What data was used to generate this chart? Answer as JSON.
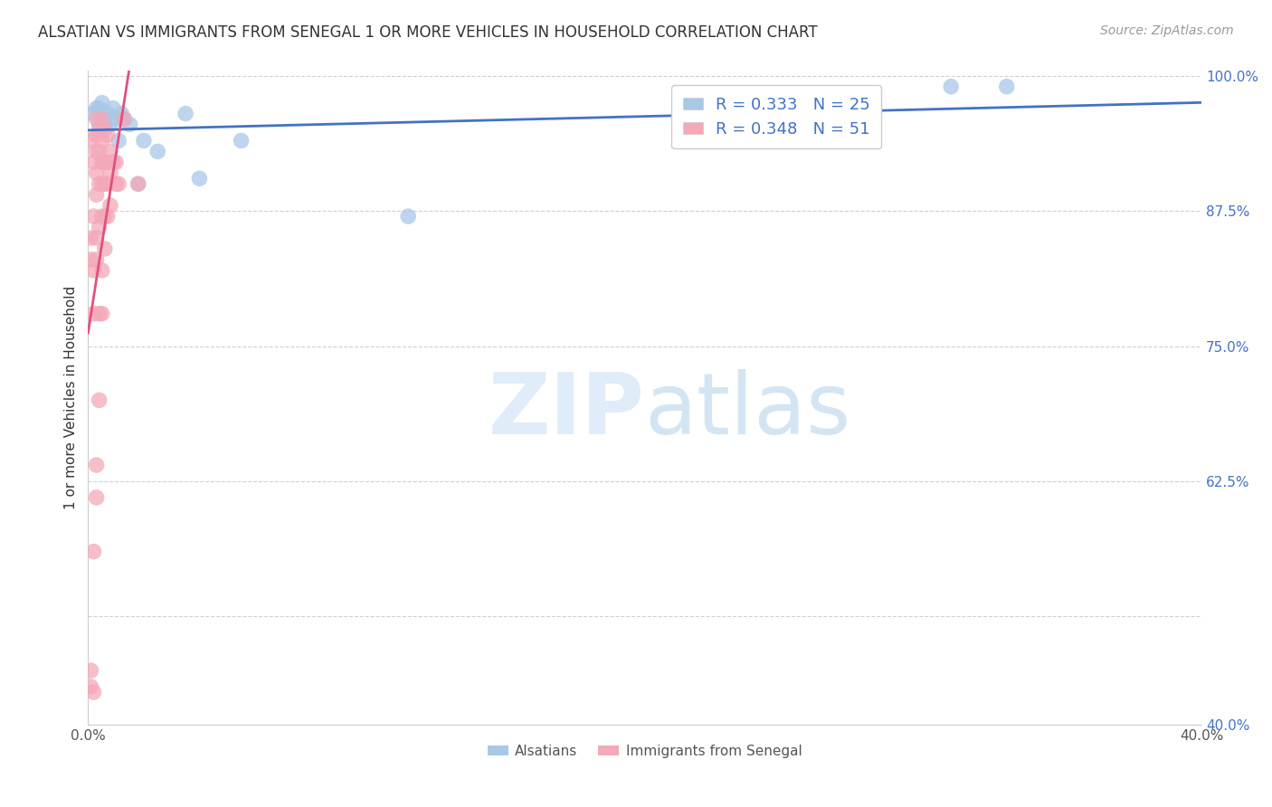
{
  "title": "ALSATIAN VS IMMIGRANTS FROM SENEGAL 1 OR MORE VEHICLES IN HOUSEHOLD CORRELATION CHART",
  "source": "Source: ZipAtlas.com",
  "xlabel": "",
  "ylabel": "1 or more Vehicles in Household",
  "xlim": [
    0.0,
    0.4
  ],
  "ylim": [
    0.4,
    1.005
  ],
  "xticks": [
    0.0,
    0.05,
    0.1,
    0.15,
    0.2,
    0.25,
    0.3,
    0.35,
    0.4
  ],
  "xticklabels": [
    "0.0%",
    "",
    "",
    "",
    "",
    "",
    "",
    "",
    "40.0%"
  ],
  "yticks": [
    0.4,
    0.5,
    0.625,
    0.75,
    0.875,
    1.0
  ],
  "yticklabels": [
    "40.0%",
    "",
    "62.5%",
    "75.0%",
    "87.5%",
    "100.0%"
  ],
  "grid_color": "#d0d0d0",
  "background_color": "#ffffff",
  "legend_label_blue": "Alsatians",
  "legend_label_pink": "Immigrants from Senegal",
  "R_blue": "0.333",
  "N_blue": "25",
  "R_pink": "0.348",
  "N_pink": "51",
  "blue_color": "#a8c8e8",
  "pink_color": "#f4a8b8",
  "trend_blue": "#4472c4",
  "trend_pink": "#e05080",
  "blue_x": [
    0.002,
    0.003,
    0.004,
    0.004,
    0.005,
    0.005,
    0.006,
    0.006,
    0.007,
    0.008,
    0.009,
    0.01,
    0.011,
    0.012,
    0.013,
    0.015,
    0.018,
    0.02,
    0.025,
    0.035,
    0.04,
    0.055,
    0.115,
    0.31,
    0.33
  ],
  "blue_y": [
    0.965,
    0.97,
    0.955,
    0.97,
    0.96,
    0.975,
    0.96,
    0.955,
    0.965,
    0.955,
    0.97,
    0.96,
    0.94,
    0.965,
    0.96,
    0.955,
    0.9,
    0.94,
    0.93,
    0.965,
    0.905,
    0.94,
    0.87,
    0.99,
    0.99
  ],
  "pink_x": [
    0.001,
    0.001,
    0.001,
    0.001,
    0.001,
    0.002,
    0.002,
    0.002,
    0.002,
    0.002,
    0.002,
    0.003,
    0.003,
    0.003,
    0.003,
    0.003,
    0.003,
    0.003,
    0.003,
    0.003,
    0.004,
    0.004,
    0.004,
    0.004,
    0.004,
    0.004,
    0.005,
    0.005,
    0.005,
    0.005,
    0.005,
    0.005,
    0.005,
    0.006,
    0.006,
    0.006,
    0.006,
    0.006,
    0.007,
    0.007,
    0.007,
    0.007,
    0.008,
    0.008,
    0.008,
    0.009,
    0.01,
    0.01,
    0.011,
    0.013,
    0.018
  ],
  "pink_y": [
    0.435,
    0.45,
    0.83,
    0.85,
    0.94,
    0.43,
    0.56,
    0.78,
    0.82,
    0.87,
    0.92,
    0.61,
    0.64,
    0.83,
    0.85,
    0.89,
    0.91,
    0.93,
    0.945,
    0.96,
    0.7,
    0.78,
    0.86,
    0.9,
    0.93,
    0.95,
    0.78,
    0.82,
    0.87,
    0.9,
    0.92,
    0.94,
    0.96,
    0.84,
    0.87,
    0.9,
    0.92,
    0.95,
    0.87,
    0.9,
    0.92,
    0.945,
    0.88,
    0.91,
    0.93,
    0.92,
    0.9,
    0.92,
    0.9,
    0.96,
    0.9
  ]
}
